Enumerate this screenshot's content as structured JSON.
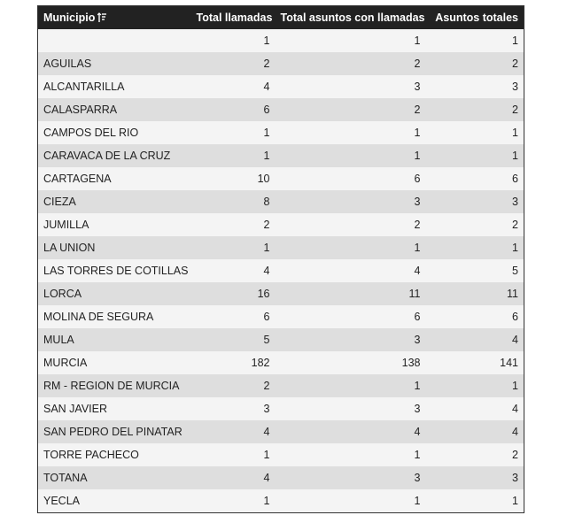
{
  "table": {
    "headers": [
      "Municipio",
      "Total llamadas",
      "Total asuntos con llamadas",
      "Asuntos totales"
    ],
    "rows": [
      [
        null,
        1,
        1,
        1
      ],
      [
        "AGUILAS",
        2,
        2,
        2
      ],
      [
        "ALCANTARILLA",
        4,
        3,
        3
      ],
      [
        "CALASPARRA",
        6,
        2,
        2
      ],
      [
        "CAMPOS DEL RIO",
        1,
        1,
        1
      ],
      [
        "CARAVACA DE LA CRUZ",
        1,
        1,
        1
      ],
      [
        "CARTAGENA",
        10,
        6,
        6
      ],
      [
        "CIEZA",
        8,
        3,
        3
      ],
      [
        "JUMILLA",
        2,
        2,
        2
      ],
      [
        "LA UNION",
        1,
        1,
        1
      ],
      [
        "LAS TORRES DE COTILLAS",
        4,
        4,
        5
      ],
      [
        "LORCA",
        16,
        11,
        11
      ],
      [
        "MOLINA DE SEGURA",
        6,
        6,
        6
      ],
      [
        "MULA",
        5,
        3,
        4
      ],
      [
        "MURCIA",
        182,
        138,
        141
      ],
      [
        "RM - REGION DE MURCIA",
        2,
        1,
        1
      ],
      [
        "SAN JAVIER",
        3,
        3,
        4
      ],
      [
        "SAN PEDRO DEL PINATAR",
        4,
        4,
        4
      ],
      [
        "TORRE PACHECO",
        1,
        1,
        2
      ],
      [
        "TOTANA",
        4,
        3,
        3
      ],
      [
        "YECLA",
        1,
        1,
        1
      ]
    ]
  }
}
